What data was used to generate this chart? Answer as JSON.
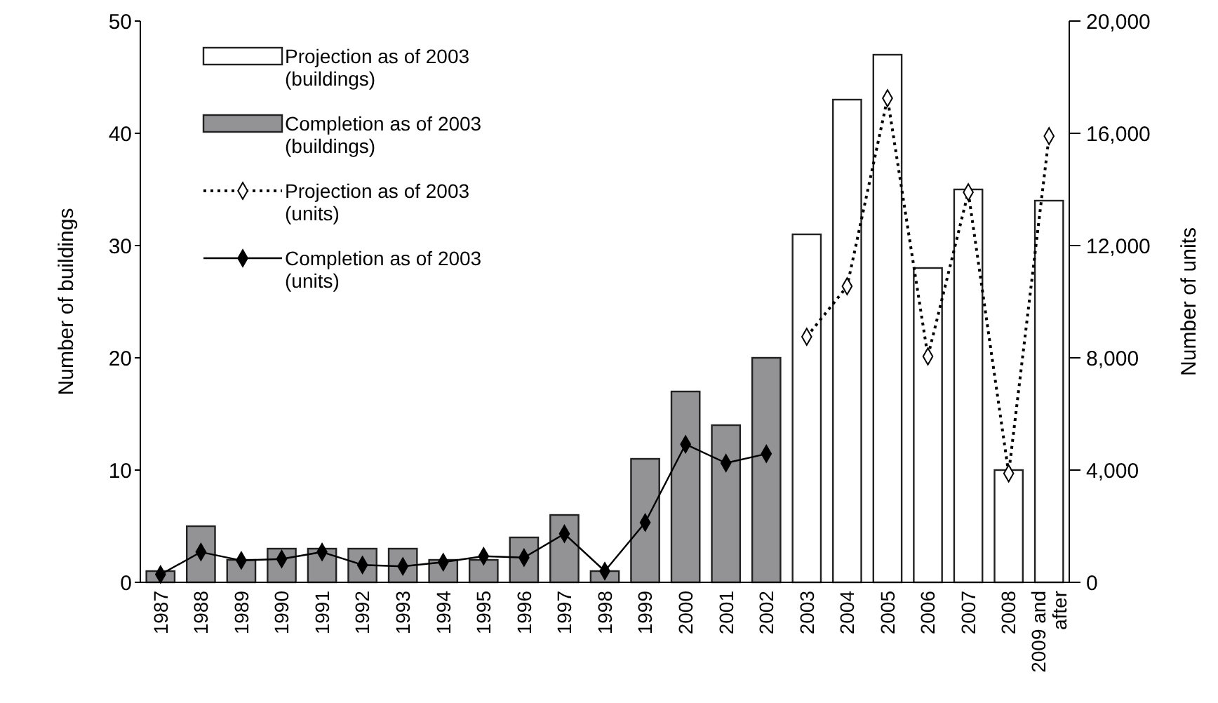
{
  "chart_data": {
    "type": "bar",
    "ylabel": "Number of buildings",
    "y2label": "Number of units",
    "categories": [
      "1987",
      "1988",
      "1989",
      "1990",
      "1991",
      "1992",
      "1993",
      "1994",
      "1995",
      "1996",
      "1997",
      "1998",
      "1999",
      "2000",
      "2001",
      "2002",
      "2003",
      "2004",
      "2005",
      "2006",
      "2007",
      "2008",
      "2009 and after"
    ],
    "ylim": [
      0,
      50
    ],
    "yticks": [
      0,
      10,
      20,
      30,
      40,
      50
    ],
    "y2lim": [
      0,
      20000
    ],
    "y2ticks": [
      0,
      {
        "value": 4000,
        "label": "4,000"
      },
      {
        "value": 8000,
        "label": "8,000"
      },
      {
        "value": 12000,
        "label": "12,000"
      },
      {
        "value": 16000,
        "label": "16,000"
      },
      {
        "value": 20000,
        "label": "20,000"
      }
    ],
    "legend": "top left",
    "grid": false,
    "series": [
      {
        "name": "Projection as of 2003 (buildings)",
        "color": "#ffffff",
        "values": [
          null,
          null,
          null,
          null,
          null,
          null,
          null,
          null,
          null,
          null,
          null,
          null,
          null,
          null,
          null,
          null,
          31,
          43,
          47,
          28,
          35,
          10,
          34
        ]
      },
      {
        "name": "Completion as of 2003 (buildings)",
        "color": "#939396",
        "values": [
          1,
          5,
          2,
          3,
          3,
          3,
          3,
          2,
          2,
          4,
          6,
          1,
          11,
          17,
          14,
          20,
          null,
          null,
          null,
          null,
          null,
          null,
          null
        ]
      },
      {
        "name": "Projection as of 2003 (units)",
        "type": "line",
        "axis": "y2",
        "color": "#000000",
        "line_style": "dotted",
        "marker": "diamond",
        "values": [
          null,
          null,
          null,
          null,
          null,
          null,
          null,
          null,
          null,
          null,
          null,
          null,
          null,
          null,
          null,
          null,
          8750,
          10550,
          17250,
          8050,
          13900,
          3880,
          15900
        ]
      },
      {
        "name": "Completion as of 2003 (units)",
        "type": "line",
        "axis": "y2",
        "color": "#000000",
        "line_style": "solid",
        "marker": "diamond",
        "values": [
          280,
          1080,
          780,
          830,
          1080,
          620,
          570,
          720,
          930,
          880,
          1730,
          400,
          2130,
          4920,
          4250,
          4580,
          null,
          null,
          null,
          null,
          null,
          null,
          null
        ]
      }
    ]
  }
}
